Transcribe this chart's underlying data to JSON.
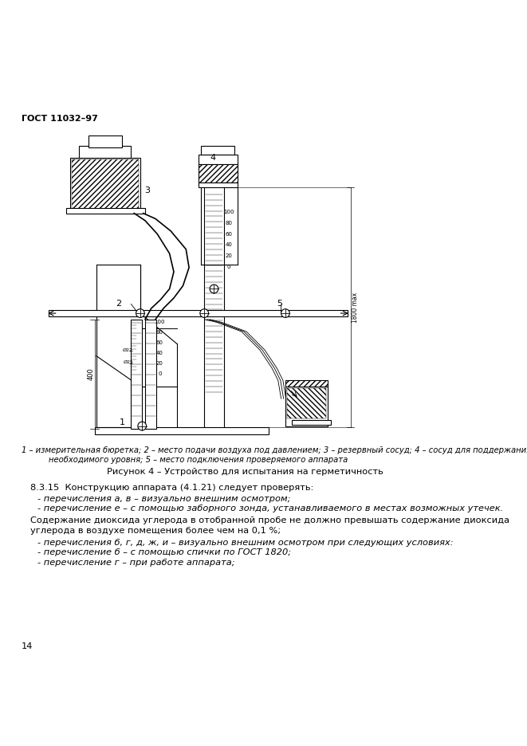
{
  "page_width": 6.61,
  "page_height": 9.36,
  "bg_color": "#ffffff",
  "header_text": "ГОСТ 11032–97",
  "header_fontsize": 8.0,
  "header_bold": true,
  "figure_caption_line1": "1 – измерительная бюретка; 2 – место подачи воздуха под давлением; 3 – резервный сосуд; 4 – сосуд для поддержания",
  "figure_caption_line2": "необходимого уровня; 5 – место подключения проверяемого аппарата",
  "figure_title": "Рисунок 4 – Устройство для испытания на герметичность",
  "section_heading": "8.3.15  Конструкцию аппарата (4.1.21) следует проверять:",
  "bullet1": "- перечисления а, в – визуально внешним осмотром;",
  "bullet2": "- перечисление е – с помощью заборного зонда, устанавливаемого в местах возможных утечек.",
  "para1_line1": "Содержание диоксида углерода в отобранной пробе не должно превышать содержание диоксида",
  "para1_line2": "углерода в воздухе помещения более чем на 0,1 %;",
  "bullet3": "- перечисления б, г, д, ж, и – визуально внешним осмотром при следующих условиях:",
  "bullet4": "- перечисление б – с помощью спички по ГОСТ 1820;",
  "bullet5": "- перечисление г – при работе аппарата;",
  "page_number": "14",
  "text_color": "#000000",
  "line_color": "#000000",
  "body_fontsize": 8.2,
  "caption_fontsize": 7.2,
  "figtitle_fontsize": 8.2
}
